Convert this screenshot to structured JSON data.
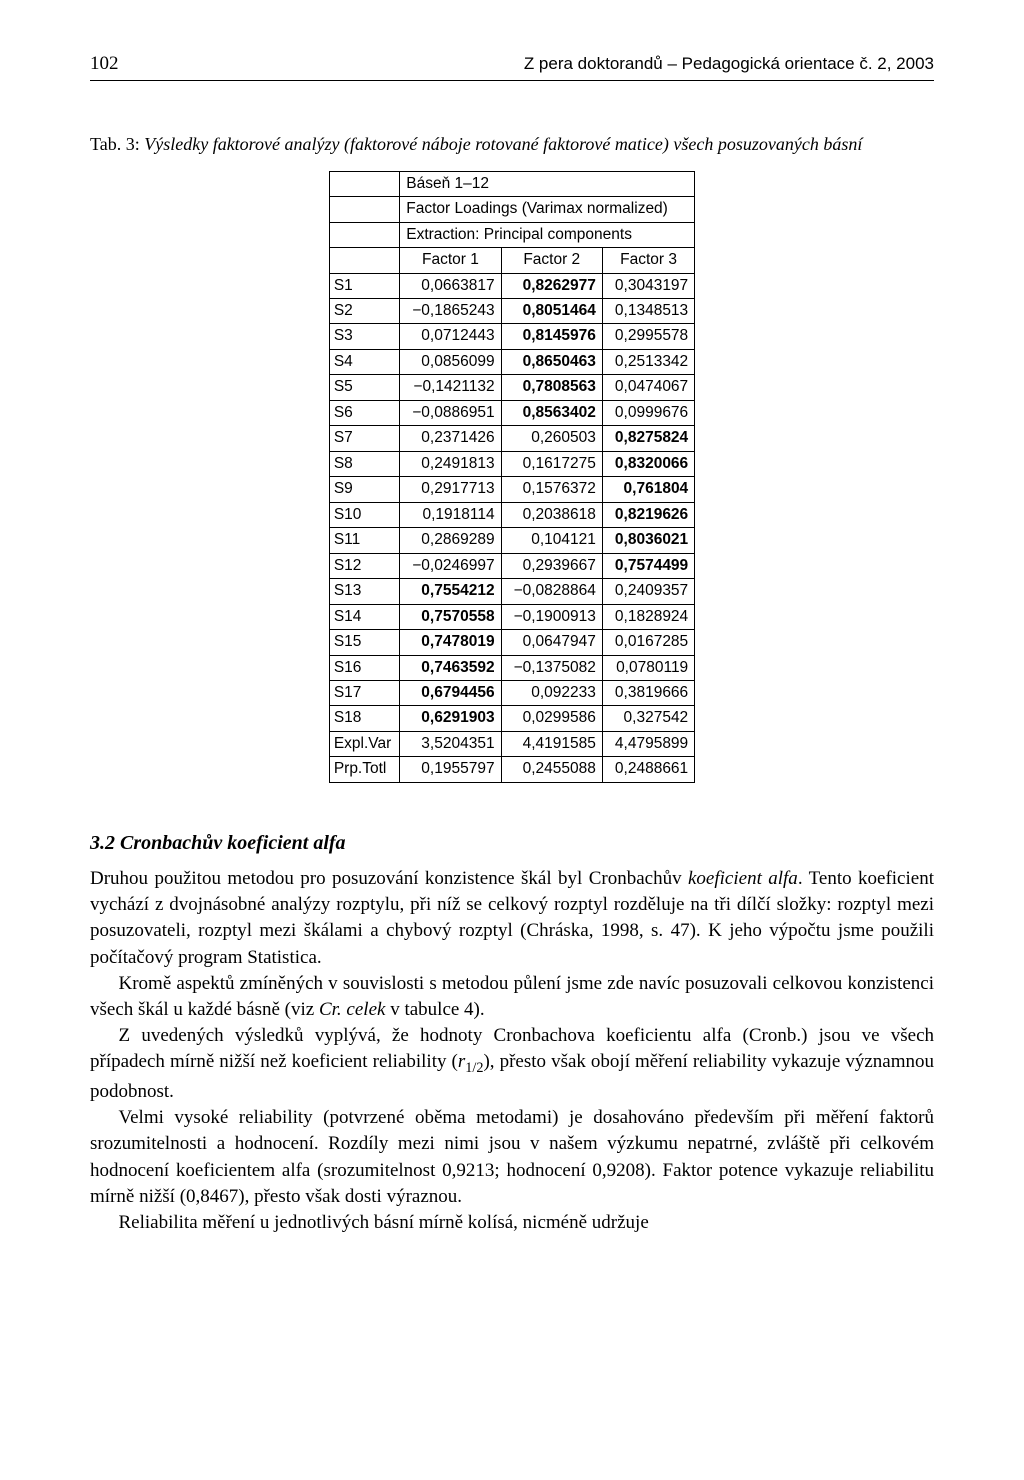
{
  "header": {
    "page_number": "102",
    "running_head": "Z pera doktorandů – Pedagogická orientace č. 2, 2003"
  },
  "caption": {
    "label": "Tab. 3:",
    "text": "Výsledky faktorové analýzy (faktorové náboje rotované faktorové matice) všech posuzovaných básní"
  },
  "table": {
    "title_row1": "Báseň 1–12",
    "title_row2": "Factor Loadings (Varimax normalized)",
    "title_row3": "Extraction: Principal components",
    "col_headers": [
      "Factor 1",
      "Factor 2",
      "Factor 3"
    ],
    "rows": [
      {
        "label": "S1",
        "cells": [
          {
            "v": "0,0663817",
            "b": false
          },
          {
            "v": "0,8262977",
            "b": true
          },
          {
            "v": "0,3043197",
            "b": false
          }
        ]
      },
      {
        "label": "S2",
        "cells": [
          {
            "v": "−0,1865243",
            "b": false
          },
          {
            "v": "0,8051464",
            "b": true
          },
          {
            "v": "0,1348513",
            "b": false
          }
        ]
      },
      {
        "label": "S3",
        "cells": [
          {
            "v": "0,0712443",
            "b": false
          },
          {
            "v": "0,8145976",
            "b": true
          },
          {
            "v": "0,2995578",
            "b": false
          }
        ]
      },
      {
        "label": "S4",
        "cells": [
          {
            "v": "0,0856099",
            "b": false
          },
          {
            "v": "0,8650463",
            "b": true
          },
          {
            "v": "0,2513342",
            "b": false
          }
        ]
      },
      {
        "label": "S5",
        "cells": [
          {
            "v": "−0,1421132",
            "b": false
          },
          {
            "v": "0,7808563",
            "b": true
          },
          {
            "v": "0,0474067",
            "b": false
          }
        ]
      },
      {
        "label": "S6",
        "cells": [
          {
            "v": "−0,0886951",
            "b": false
          },
          {
            "v": "0,8563402",
            "b": true
          },
          {
            "v": "0,0999676",
            "b": false
          }
        ]
      },
      {
        "label": "S7",
        "cells": [
          {
            "v": "0,2371426",
            "b": false
          },
          {
            "v": "0,260503",
            "b": false
          },
          {
            "v": "0,8275824",
            "b": true
          }
        ]
      },
      {
        "label": "S8",
        "cells": [
          {
            "v": "0,2491813",
            "b": false
          },
          {
            "v": "0,1617275",
            "b": false
          },
          {
            "v": "0,8320066",
            "b": true
          }
        ]
      },
      {
        "label": "S9",
        "cells": [
          {
            "v": "0,2917713",
            "b": false
          },
          {
            "v": "0,1576372",
            "b": false
          },
          {
            "v": "0,761804",
            "b": true
          }
        ]
      },
      {
        "label": "S10",
        "cells": [
          {
            "v": "0,1918114",
            "b": false
          },
          {
            "v": "0,2038618",
            "b": false
          },
          {
            "v": "0,8219626",
            "b": true
          }
        ]
      },
      {
        "label": "S11",
        "cells": [
          {
            "v": "0,2869289",
            "b": false
          },
          {
            "v": "0,104121",
            "b": false
          },
          {
            "v": "0,8036021",
            "b": true
          }
        ]
      },
      {
        "label": "S12",
        "cells": [
          {
            "v": "−0,0246997",
            "b": false
          },
          {
            "v": "0,2939667",
            "b": false
          },
          {
            "v": "0,7574499",
            "b": true
          }
        ]
      },
      {
        "label": "S13",
        "cells": [
          {
            "v": "0,7554212",
            "b": true
          },
          {
            "v": "−0,0828864",
            "b": false
          },
          {
            "v": "0,2409357",
            "b": false
          }
        ]
      },
      {
        "label": "S14",
        "cells": [
          {
            "v": "0,7570558",
            "b": true
          },
          {
            "v": "−0,1900913",
            "b": false
          },
          {
            "v": "0,1828924",
            "b": false
          }
        ]
      },
      {
        "label": "S15",
        "cells": [
          {
            "v": "0,7478019",
            "b": true
          },
          {
            "v": "0,0647947",
            "b": false
          },
          {
            "v": "0,0167285",
            "b": false
          }
        ]
      },
      {
        "label": "S16",
        "cells": [
          {
            "v": "0,7463592",
            "b": true
          },
          {
            "v": "−0,1375082",
            "b": false
          },
          {
            "v": "0,0780119",
            "b": false
          }
        ]
      },
      {
        "label": "S17",
        "cells": [
          {
            "v": "0,6794456",
            "b": true
          },
          {
            "v": "0,092233",
            "b": false
          },
          {
            "v": "0,3819666",
            "b": false
          }
        ]
      },
      {
        "label": "S18",
        "cells": [
          {
            "v": "0,6291903",
            "b": true
          },
          {
            "v": "0,0299586",
            "b": false
          },
          {
            "v": "0,327542",
            "b": false
          }
        ]
      },
      {
        "label": "Expl.Var",
        "cells": [
          {
            "v": "3,5204351",
            "b": false
          },
          {
            "v": "4,4191585",
            "b": false
          },
          {
            "v": "4,4795899",
            "b": false
          }
        ]
      },
      {
        "label": "Prp.Totl",
        "cells": [
          {
            "v": "0,1955797",
            "b": false
          },
          {
            "v": "0,2455088",
            "b": false
          },
          {
            "v": "0,2488661",
            "b": false
          }
        ]
      }
    ]
  },
  "section": {
    "heading": "3.2 Cronbachův koeficient alfa"
  },
  "paragraphs": {
    "p1a": "Druhou použitou metodou pro posuzování konzistence škál byl Cronbachův ",
    "p1b_i": "koeficient alfa",
    "p1c": ". Tento koeficient vychází z dvojnásobné analýzy rozptylu, při níž se celkový rozptyl rozděluje na tři dílčí složky: rozptyl mezi posuzovateli, rozptyl mezi škálami a chybový rozptyl (Chráska, 1998, s. 47). K jeho výpočtu jsme použili počítačový program Statistica.",
    "p2a": "Kromě aspektů zmíněných v souvislosti s metodou půlení jsme zde navíc posuzovali celkovou konzistenci všech škál u každé básně (viz ",
    "p2b_i": "Cr. celek",
    "p2c": " v tabulce 4).",
    "p3a": "Z uvedených výsledků vyplývá, že hodnoty Cronbachova koeficientu alfa (Cronb.) jsou ve všech případech mírně nižší než koeficient reliability (",
    "p3r": "r",
    "p3sub": "1/2",
    "p3b": "), přesto však obojí měření reliability vykazuje významnou podobnost.",
    "p4": "Velmi vysoké reliability (potvrzené oběma metodami) je dosahováno především při měření faktorů srozumitelnosti a hodnocení. Rozdíly mezi nimi jsou v našem výzkumu nepatrné, zvláště při celkovém hodnocení koeficientem alfa (srozumitelnost 0,9213; hodnocení 0,9208). Faktor potence vykazuje reliabilitu mírně nižší (0,8467), přesto však dosti výraznou.",
    "p5": "Reliabilita měření u jednotlivých básní mírně kolísá, nicméně udržuje"
  }
}
